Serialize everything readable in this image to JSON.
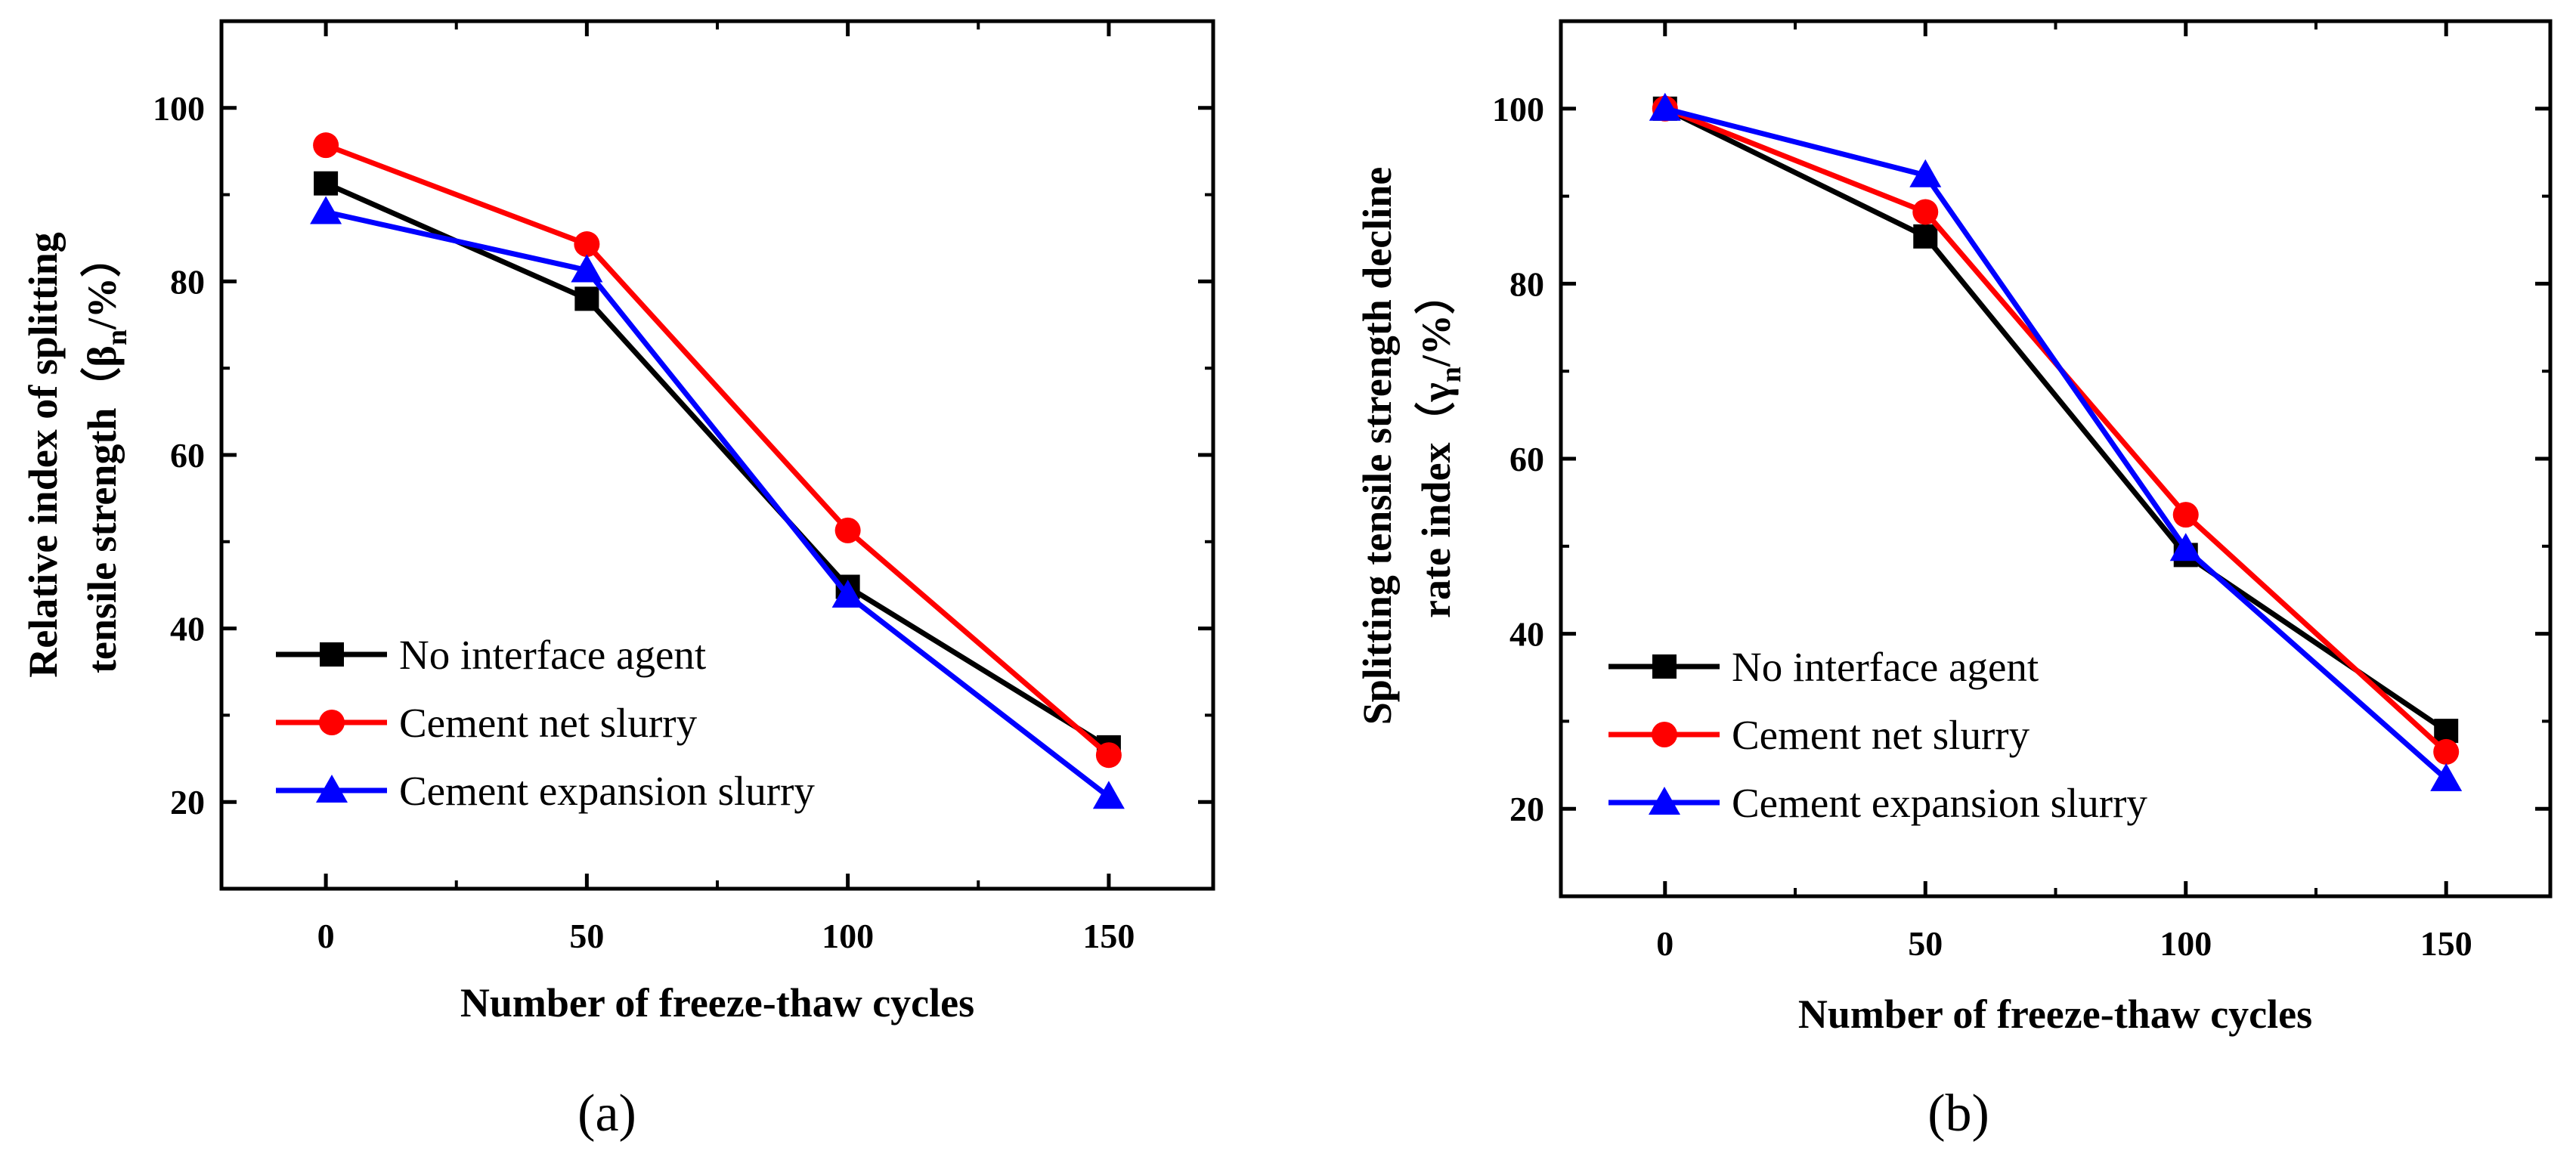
{
  "chart_data": [
    {
      "type": "line",
      "panel_label": "(a)",
      "xlabel": "Number of freeze-thaw cycles",
      "ylabel_line1": "Relative index of splitting",
      "ylabel_line2_prefix": "tensile strength（β",
      "ylabel_line2_sub": "n",
      "ylabel_line2_suffix": "/%）",
      "x": [
        0,
        50,
        100,
        150
      ],
      "xlim": [
        -20,
        170
      ],
      "ylim": [
        10,
        110
      ],
      "xticks": [
        0,
        50,
        100,
        150
      ],
      "yticks": [
        20,
        40,
        60,
        80,
        100
      ],
      "grid": false,
      "legend_position": "bottom-left",
      "series": [
        {
          "name": "No interface agent",
          "color": "#000000",
          "marker": "square",
          "values": [
            91.3,
            78.0,
            44.8,
            26.3
          ]
        },
        {
          "name": "Cement net slurry",
          "color": "#ff0000",
          "marker": "circle",
          "values": [
            95.7,
            84.3,
            51.3,
            25.4
          ]
        },
        {
          "name": "Cement expansion slurry",
          "color": "#0000ff",
          "marker": "triangle",
          "values": [
            88.0,
            81.3,
            43.8,
            20.6
          ]
        }
      ]
    },
    {
      "type": "line",
      "panel_label": "(b)",
      "xlabel": "Number of freeze-thaw cycles",
      "ylabel_line1": "Splitting tensile strength decline",
      "ylabel_line2_prefix": "rate index（γ",
      "ylabel_line2_sub": "n",
      "ylabel_line2_suffix": "/%）",
      "x": [
        0,
        50,
        100,
        150
      ],
      "xlim": [
        -20,
        170
      ],
      "ylim": [
        10,
        110
      ],
      "xticks": [
        0,
        50,
        100,
        150
      ],
      "yticks": [
        20,
        40,
        60,
        80,
        100
      ],
      "grid": false,
      "legend_position": "bottom-left",
      "series": [
        {
          "name": "No interface agent",
          "color": "#000000",
          "marker": "square",
          "values": [
            100,
            85.4,
            49.0,
            28.9
          ]
        },
        {
          "name": "Cement net slurry",
          "color": "#ff0000",
          "marker": "circle",
          "values": [
            100,
            88.2,
            53.6,
            26.5
          ]
        },
        {
          "name": "Cement expansion slurry",
          "color": "#0000ff",
          "marker": "triangle",
          "values": [
            100,
            92.4,
            49.7,
            23.4
          ]
        }
      ]
    }
  ]
}
